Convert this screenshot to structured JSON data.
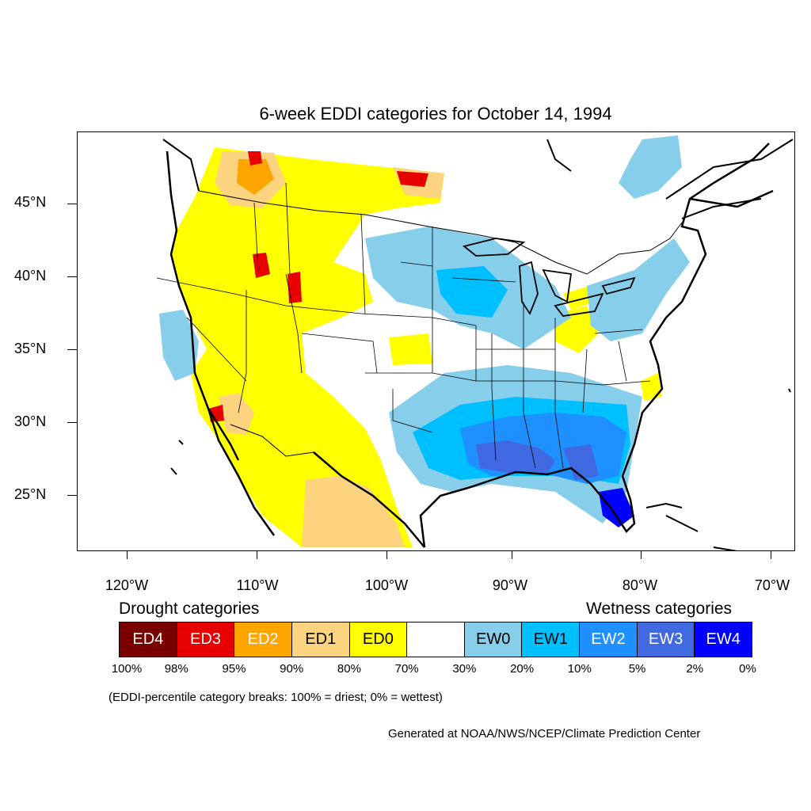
{
  "title": "6-week EDDI categories for October 14, 1994",
  "lat_labels": [
    "45°N",
    "40°N",
    "35°N",
    "30°N",
    "25°N"
  ],
  "lon_labels": [
    "120°W",
    "110°W",
    "100°W",
    "90°W",
    "80°W",
    "70°W"
  ],
  "legend": {
    "drought_heading": "Drought categories",
    "wetness_heading": "Wetness categories",
    "categories": [
      {
        "label": "ED4",
        "color": "#7a0000",
        "text_color": "#ffffff"
      },
      {
        "label": "ED3",
        "color": "#e60000",
        "text_color": "#ffffff"
      },
      {
        "label": "ED2",
        "color": "#ffa500",
        "text_color": "#ffffff"
      },
      {
        "label": "ED1",
        "color": "#fcd37f",
        "text_color": "#000000"
      },
      {
        "label": "ED0",
        "color": "#ffff00",
        "text_color": "#000000"
      },
      {
        "label": "",
        "color": "#ffffff",
        "text_color": "#000000"
      },
      {
        "label": "EW0",
        "color": "#87ceeb",
        "text_color": "#000000"
      },
      {
        "label": "EW1",
        "color": "#00bfff",
        "text_color": "#000000"
      },
      {
        "label": "EW2",
        "color": "#1e90ff",
        "text_color": "#ffffff"
      },
      {
        "label": "EW3",
        "color": "#4169e1",
        "text_color": "#ffffff"
      },
      {
        "label": "EW4",
        "color": "#0000ff",
        "text_color": "#ffffff"
      }
    ],
    "percentiles": [
      "100%",
      "98%",
      "95%",
      "90%",
      "80%",
      "70%",
      "30%",
      "20%",
      "10%",
      "5%",
      "2%",
      "0%"
    ]
  },
  "note": "(EDDI-percentile category breaks: 100% = driest; 0% = wettest)",
  "credit": "Generated at NOAA/NWS/NCEP/Climate Prediction Center"
}
